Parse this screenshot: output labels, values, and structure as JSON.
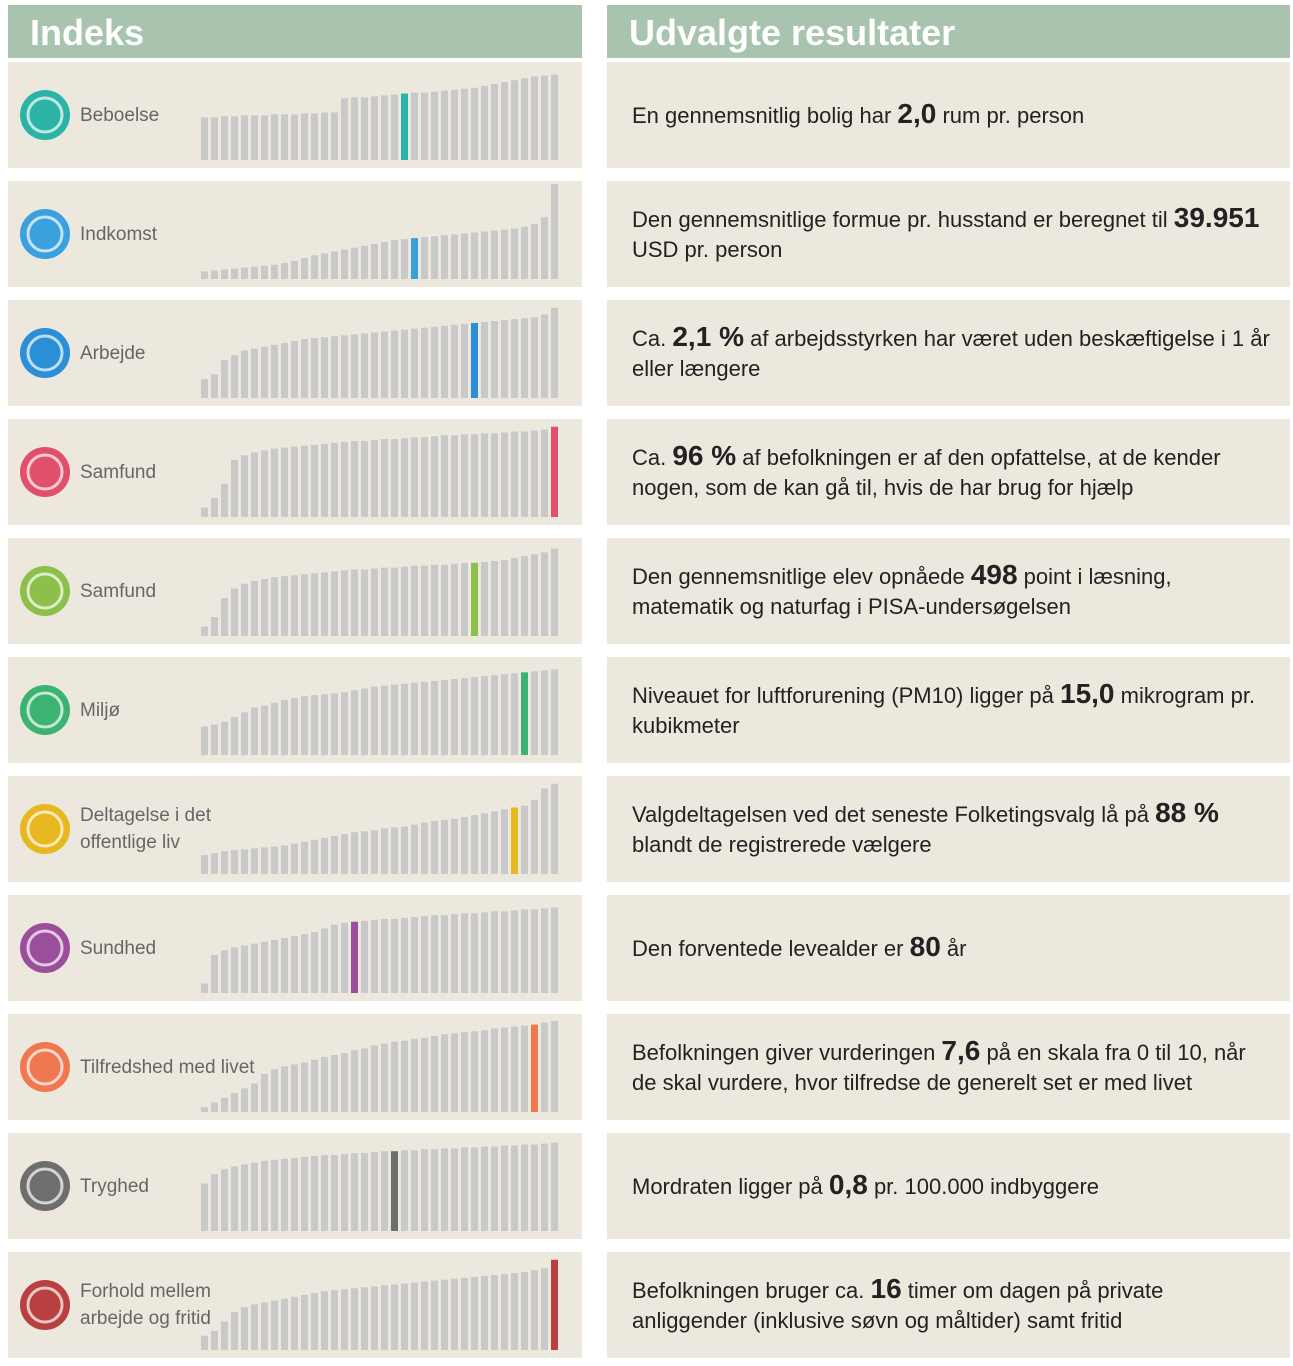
{
  "headers": {
    "left": "Indeks",
    "right": "Udvalgte resultater"
  },
  "rows": [
    {
      "label_lines": [
        "Beboelse"
      ],
      "color": "#2bb3a8",
      "highlight": 20,
      "bars": [
        45,
        45,
        46,
        46,
        47,
        47,
        47,
        48,
        48,
        48,
        49,
        49,
        50,
        50,
        65,
        66,
        66,
        67,
        68,
        69,
        70,
        71,
        71,
        72,
        73,
        74,
        75,
        76,
        78,
        80,
        82,
        84,
        86,
        88,
        89,
        90
      ],
      "result": {
        "before": "En gennemsnitlig bolig har ",
        "number": "2,0",
        "after": " rum pr. person"
      }
    },
    {
      "label_lines": [
        "Indkomst"
      ],
      "color": "#3aa0de",
      "highlight": 21,
      "bars": [
        8,
        9,
        10,
        11,
        12,
        13,
        14,
        15,
        17,
        19,
        22,
        25,
        27,
        29,
        31,
        33,
        35,
        37,
        39,
        41,
        42,
        43,
        44,
        45,
        46,
        47,
        48,
        49,
        50,
        51,
        52,
        53,
        55,
        58,
        65,
        100
      ],
      "result": {
        "before": "Den gennemsnitlige formue pr. husstand er beregnet til ",
        "number": "39.951",
        "after": " USD pr. person"
      }
    },
    {
      "label_lines": [
        "Arbejde"
      ],
      "color": "#2a8fd6",
      "highlight": 27,
      "bars": [
        20,
        25,
        40,
        45,
        50,
        52,
        54,
        56,
        58,
        60,
        62,
        63,
        64,
        65,
        66,
        67,
        68,
        69,
        70,
        71,
        72,
        73,
        74,
        75,
        76,
        77,
        78,
        79,
        80,
        81,
        82,
        83,
        84,
        85,
        88,
        95
      ],
      "result": {
        "before": "Ca. ",
        "number": "2,1 %",
        "after": " af arbejdsstyrken har været uden beskæftigelse i 1 år eller længere"
      }
    },
    {
      "label_lines": [
        "Samfund"
      ],
      "color": "#e0506a",
      "highlight": 35,
      "bars": [
        10,
        20,
        35,
        60,
        65,
        68,
        70,
        72,
        73,
        74,
        75,
        76,
        77,
        78,
        79,
        80,
        80,
        81,
        82,
        82,
        83,
        84,
        84,
        85,
        86,
        86,
        87,
        87,
        88,
        88,
        89,
        90,
        90,
        91,
        92,
        95
      ],
      "result": {
        "before": "Ca. ",
        "number": "96 %",
        "after": " af befolkningen er af den opfattelse, at de kender nogen, som de kan gå til, hvis de har brug for hjælp"
      }
    },
    {
      "label_lines": [
        "Samfund"
      ],
      "color": "#8cc04a",
      "highlight": 27,
      "bars": [
        10,
        20,
        40,
        50,
        55,
        58,
        60,
        62,
        63,
        64,
        65,
        66,
        67,
        68,
        69,
        70,
        70,
        71,
        72,
        72,
        73,
        74,
        74,
        75,
        75,
        76,
        77,
        77,
        78,
        79,
        80,
        82,
        84,
        86,
        88,
        92
      ],
      "result": {
        "before": "Den gennemsnitlige elev opnåede ",
        "number": "498",
        "after": " point i læsning, matematik og naturfag i PISA-undersøgelsen"
      }
    },
    {
      "label_lines": [
        "Miljø"
      ],
      "color": "#3cb371",
      "highlight": 32,
      "bars": [
        30,
        32,
        35,
        40,
        45,
        50,
        52,
        55,
        58,
        60,
        62,
        63,
        64,
        65,
        66,
        68,
        70,
        72,
        73,
        74,
        75,
        76,
        77,
        78,
        79,
        80,
        81,
        82,
        83,
        84,
        85,
        86,
        87,
        88,
        89,
        90
      ],
      "result": {
        "before": "Niveauet for luftforurening (PM10) ligger på ",
        "number": "15,0",
        "after": " mikrogram pr. kubikmeter"
      }
    },
    {
      "label_lines": [
        "Deltagelse i det",
        "offentlige liv"
      ],
      "color": "#e8b820",
      "highlight": 31,
      "bars": [
        20,
        22,
        24,
        25,
        26,
        27,
        28,
        29,
        30,
        32,
        34,
        36,
        38,
        40,
        42,
        44,
        45,
        46,
        48,
        49,
        50,
        52,
        54,
        56,
        57,
        58,
        60,
        62,
        64,
        66,
        68,
        70,
        72,
        78,
        90,
        95
      ],
      "result": {
        "before": "Valgdeltagelsen ved det seneste Folketingsvalg lå på ",
        "number": "88 %",
        "after": " blandt de registrerede vælgere"
      }
    },
    {
      "label_lines": [
        "Sundhed"
      ],
      "color": "#9b4f9b",
      "highlight": 15,
      "bars": [
        10,
        40,
        45,
        48,
        50,
        52,
        54,
        56,
        58,
        60,
        62,
        64,
        68,
        72,
        74,
        75,
        76,
        77,
        78,
        78,
        79,
        80,
        81,
        82,
        82,
        83,
        84,
        84,
        85,
        86,
        86,
        87,
        88,
        88,
        89,
        90
      ],
      "result": {
        "before": "Den forventede levealder er ",
        "number": "80",
        "after": " år"
      }
    },
    {
      "label_lines": [
        "Tilfredshed med livet"
      ],
      "color": "#f07850",
      "highlight": 33,
      "bars": [
        5,
        10,
        15,
        20,
        25,
        30,
        40,
        45,
        48,
        50,
        52,
        55,
        58,
        60,
        62,
        65,
        67,
        70,
        72,
        74,
        75,
        77,
        78,
        80,
        82,
        83,
        84,
        85,
        86,
        88,
        89,
        90,
        91,
        92,
        94,
        96
      ],
      "result": {
        "before": "Befolkningen giver vurderingen ",
        "number": "7,6",
        "after": " på en skala fra 0 til 10, når de skal vurdere, hvor tilfredse de generelt set er med livet"
      }
    },
    {
      "label_lines": [
        "Tryghed"
      ],
      "color": "#6e6e6e",
      "highlight": 19,
      "bars": [
        50,
        60,
        65,
        68,
        70,
        72,
        74,
        75,
        76,
        77,
        78,
        79,
        80,
        80,
        81,
        82,
        82,
        83,
        84,
        84,
        85,
        85,
        86,
        86,
        87,
        87,
        88,
        88,
        89,
        89,
        90,
        90,
        91,
        91,
        92,
        93
      ],
      "result": {
        "before": "Mordraten ligger på ",
        "number": "0,8",
        "after": " pr. 100.000 indbyggere"
      }
    },
    {
      "label_lines": [
        "Forhold mellem",
        "arbejde og fritid"
      ],
      "color": "#b84040",
      "highlight": 35,
      "bars": [
        15,
        20,
        30,
        40,
        45,
        48,
        50,
        52,
        54,
        56,
        58,
        60,
        62,
        63,
        64,
        65,
        66,
        67,
        68,
        69,
        70,
        71,
        72,
        73,
        74,
        75,
        76,
        77,
        78,
        79,
        80,
        81,
        82,
        84,
        86,
        95
      ],
      "result": {
        "before": "Befolkningen bruger ca. ",
        "number": "16",
        "after": " timer om dagen på private anliggender (inklusive søvn og måltider) samt fritid"
      }
    }
  ]
}
